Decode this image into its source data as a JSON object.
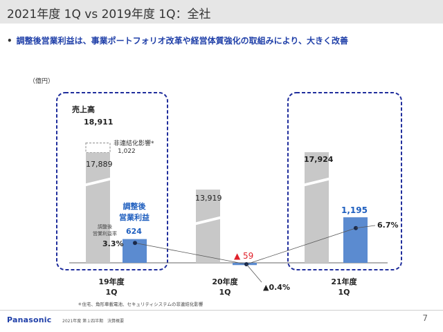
{
  "header": {
    "title": "2021年度 1Q vs 2019年度 1Q：全社"
  },
  "bullet": {
    "marker": "•",
    "text": "調整後営業利益は、事業ポートフォリオ改革や経営体質強化の取組みにより、大きく改善"
  },
  "unit_label": "（億円）",
  "chart_data": {
    "type": "bar",
    "title": "2021年度 1Q vs 2019年度 1Q：全社",
    "unit": "億円",
    "categories": [
      "19年度 1Q",
      "20年度 1Q",
      "21年度 1Q"
    ],
    "category_labels": [
      {
        "line1": "19年度",
        "line2": "1Q"
      },
      {
        "line1": "20年度",
        "line2": "1Q"
      },
      {
        "line1": "21年度",
        "line2": "1Q"
      }
    ],
    "series": [
      {
        "name": "売上高",
        "values": [
          17889,
          13919,
          17924
        ],
        "labels": [
          "17,889",
          "13,919",
          "17,924"
        ],
        "color": "#c8c8c8"
      },
      {
        "name": "調整後営業利益",
        "values": [
          624,
          -59,
          1195
        ],
        "labels": [
          "624",
          "▲ 59",
          "1,195"
        ],
        "color": "#5b8bd0"
      }
    ],
    "margin_line": {
      "name": "調整後営業利益率",
      "values": [
        3.3,
        -0.4,
        6.7
      ],
      "labels": [
        "3.3%",
        "▲0.4%",
        "6.7%"
      ]
    },
    "unconsolidated": {
      "total_label": "18,911",
      "impact_label": "非連結化影響*",
      "impact_value_label": "1,022",
      "total": 18911,
      "impact": 1022
    },
    "series_labels": {
      "sales": "売上高",
      "profit_line1": "調整後",
      "profit_line2": "営業利益",
      "margin_line1": "調整後",
      "margin_line2": "営業利益率"
    },
    "footnote": "＊住宅、角形車載電池、セキュリティシステムの非連結化影響",
    "colors": {
      "sales": "#c8c8c8",
      "profit": "#5b8bd0",
      "negative_label": "#e0202a",
      "highlight_box": "#1f2d9c",
      "accent_text": "#1f5fbf"
    }
  },
  "footer": {
    "logo": "Panasonic",
    "text": "2021年度 第１四半期　決算概要",
    "page_number": "7"
  }
}
